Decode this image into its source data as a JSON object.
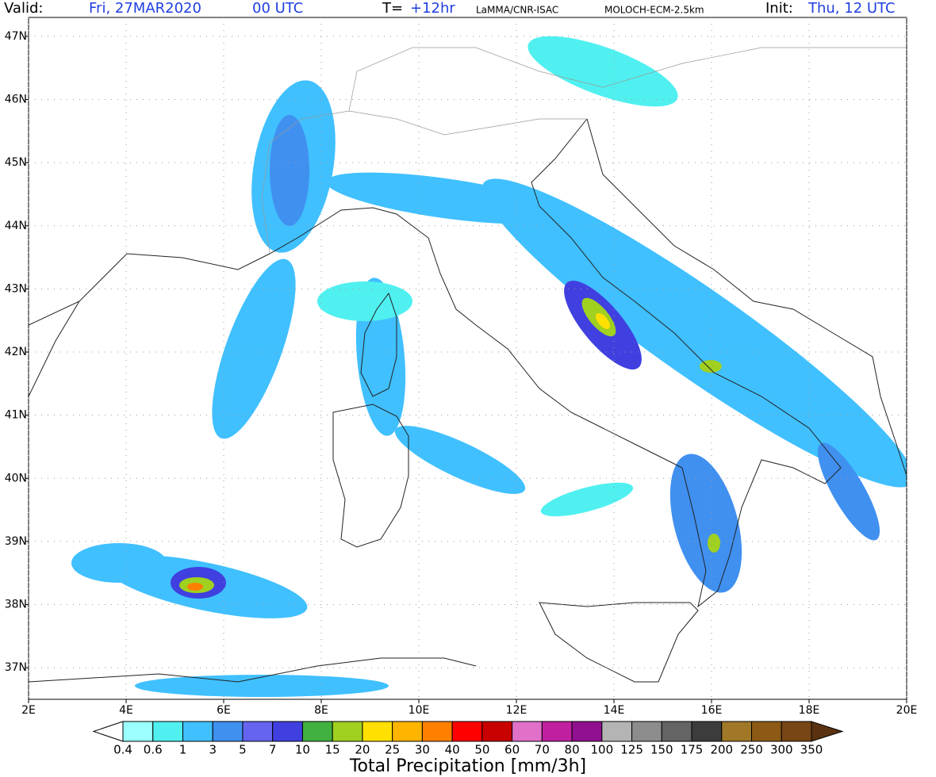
{
  "header": {
    "valid_label": "Valid:",
    "valid_date": "Fri, 27MAR2020",
    "valid_time": "00 UTC",
    "step_label": "T=",
    "step": "+12hr",
    "source": "LaMMA/CNR-ISAC",
    "model": "MOLOCH-ECM-2.5km",
    "init_label": "Init:",
    "init": "Thu, 12 UTC"
  },
  "map": {
    "lon_range": [
      2,
      20
    ],
    "lat_range": [
      36.5,
      47.3
    ],
    "lon_ticks": [
      {
        "value": 2,
        "label": "2E"
      },
      {
        "value": 4,
        "label": "4E"
      },
      {
        "value": 6,
        "label": "6E"
      },
      {
        "value": 8,
        "label": "8E"
      },
      {
        "value": 10,
        "label": "10E"
      },
      {
        "value": 12,
        "label": "12E"
      },
      {
        "value": 14,
        "label": "14E"
      },
      {
        "value": 16,
        "label": "16E"
      },
      {
        "value": 18,
        "label": "18E"
      },
      {
        "value": 20,
        "label": "20E"
      }
    ],
    "lat_ticks": [
      {
        "value": 37,
        "label": "37N"
      },
      {
        "value": 38,
        "label": "38N"
      },
      {
        "value": 39,
        "label": "39N"
      },
      {
        "value": 40,
        "label": "40N"
      },
      {
        "value": 41,
        "label": "41N"
      },
      {
        "value": 42,
        "label": "42N"
      },
      {
        "value": 43,
        "label": "43N"
      },
      {
        "value": 44,
        "label": "44N"
      },
      {
        "value": 45,
        "label": "45N"
      },
      {
        "value": 46,
        "label": "46N"
      },
      {
        "value": 47,
        "label": "47N"
      }
    ],
    "grid": true
  },
  "colorbar": {
    "title": "Total Precipitation [mm/3h]",
    "levels": [
      0.4,
      0.6,
      1,
      3,
      5,
      7,
      10,
      15,
      20,
      25,
      30,
      40,
      50,
      60,
      70,
      80,
      100,
      125,
      150,
      175,
      200,
      250,
      300,
      350
    ],
    "colors": [
      "#9bffff",
      "#50f0f0",
      "#40c0ff",
      "#4090f0",
      "#6464f0",
      "#4040e0",
      "#40b040",
      "#a0d020",
      "#ffe000",
      "#ffb400",
      "#ff8000",
      "#ff0000",
      "#c80000",
      "#e070c8",
      "#c020a0",
      "#901090",
      "#b4b4b4",
      "#8c8c8c",
      "#646464",
      "#3c3c3c",
      "#a07828",
      "#8c5a14",
      "#784614"
    ],
    "under_color": "#ffffff",
    "over_color": "#5a3210"
  }
}
